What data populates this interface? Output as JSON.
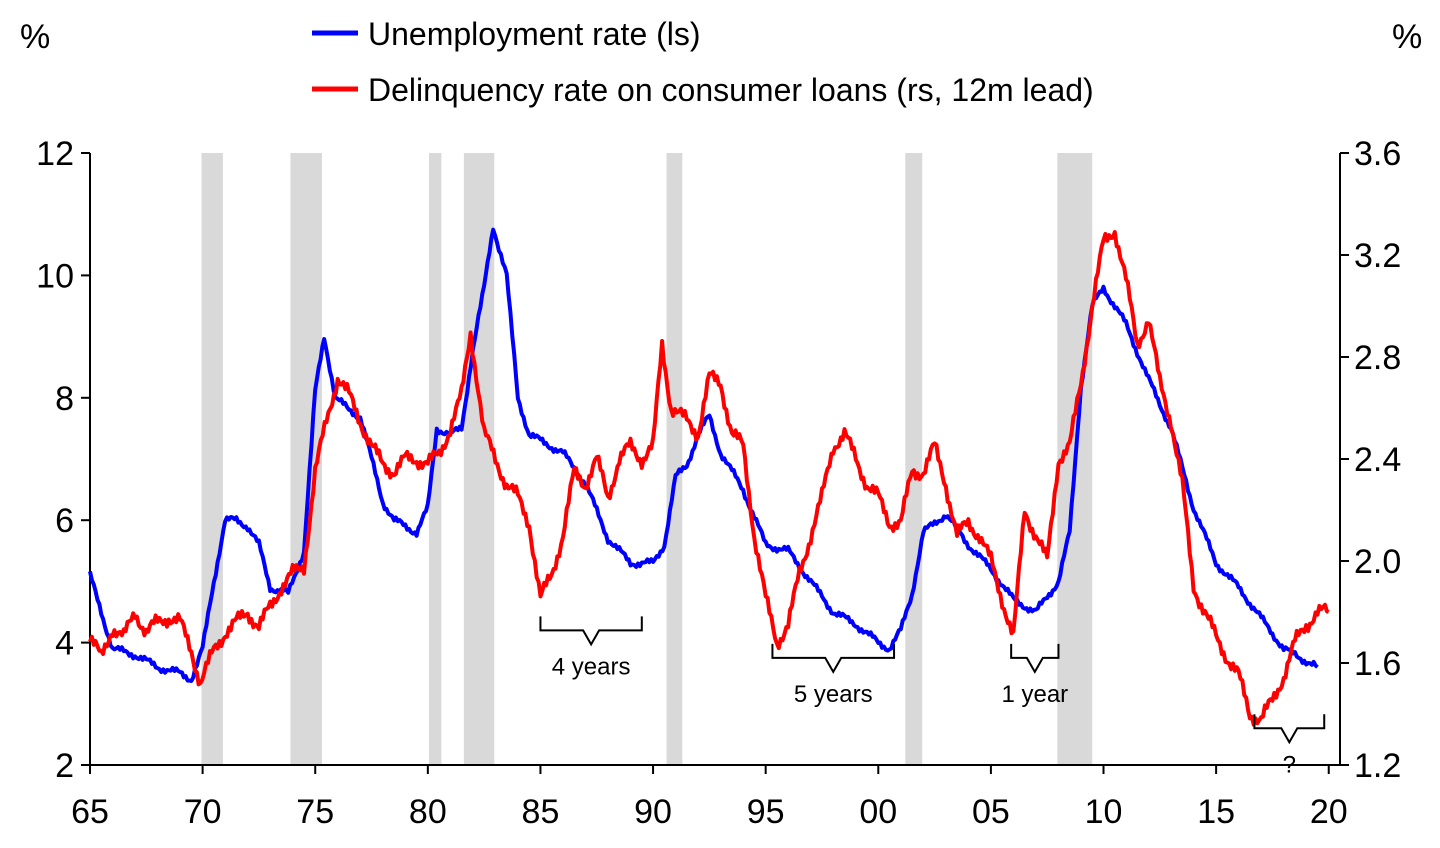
{
  "chart_data": {
    "type": "line",
    "left_axis": {
      "unit": "%",
      "ylim": [
        2,
        12
      ],
      "ticks": [
        "2",
        "4",
        "6",
        "8",
        "10",
        "12"
      ]
    },
    "right_axis": {
      "unit": "%",
      "ylim": [
        1.2,
        3.6
      ],
      "ticks": [
        "1.2",
        "1.6",
        "2.0",
        "2.4",
        "2.8",
        "3.2",
        "3.6"
      ]
    },
    "x_axis": {
      "xlim": [
        1965,
        2020.5
      ],
      "ticks": [
        {
          "year": 1965,
          "label": "65"
        },
        {
          "year": 1970,
          "label": "70"
        },
        {
          "year": 1975,
          "label": "75"
        },
        {
          "year": 1980,
          "label": "80"
        },
        {
          "year": 1985,
          "label": "85"
        },
        {
          "year": 1990,
          "label": "90"
        },
        {
          "year": 1995,
          "label": "95"
        },
        {
          "year": 2000,
          "label": "00"
        },
        {
          "year": 2005,
          "label": "05"
        },
        {
          "year": 2010,
          "label": "10"
        },
        {
          "year": 2015,
          "label": "15"
        },
        {
          "year": 2020,
          "label": "20"
        }
      ]
    },
    "legend": {
      "placement": "top",
      "entries": [
        {
          "label": "Unemployment rate (ls)",
          "color": "#0000ff"
        },
        {
          "label": "Delinquency rate on consumer loans (rs, 12m lead)",
          "color": "#ff0000"
        }
      ]
    },
    "recessions": [
      [
        1969.95,
        1970.9
      ],
      [
        1973.9,
        1975.3
      ],
      [
        1980.05,
        1980.6
      ],
      [
        1981.6,
        1982.95
      ],
      [
        1990.6,
        1991.3
      ],
      [
        2001.2,
        2001.95
      ],
      [
        2007.95,
        2009.5
      ]
    ],
    "series": [
      {
        "name": "Unemployment rate (ls)",
        "axis": "left",
        "color": "#0000ff",
        "points": [
          [
            1965.0,
            5.1
          ],
          [
            1966.0,
            3.9
          ],
          [
            1967.0,
            3.8
          ],
          [
            1968.0,
            3.6
          ],
          [
            1969.0,
            3.5
          ],
          [
            1969.5,
            3.4
          ],
          [
            1970.0,
            3.9
          ],
          [
            1970.5,
            5.0
          ],
          [
            1971.0,
            6.0
          ],
          [
            1971.5,
            6.0
          ],
          [
            1972.0,
            5.9
          ],
          [
            1972.5,
            5.6
          ],
          [
            1973.0,
            4.9
          ],
          [
            1973.8,
            4.8
          ],
          [
            1974.5,
            5.5
          ],
          [
            1975.0,
            8.1
          ],
          [
            1975.4,
            9.0
          ],
          [
            1975.9,
            8.0
          ],
          [
            1976.5,
            7.8
          ],
          [
            1977.0,
            7.7
          ],
          [
            1977.5,
            7.0
          ],
          [
            1978.0,
            6.3
          ],
          [
            1978.5,
            6.0
          ],
          [
            1979.0,
            5.9
          ],
          [
            1979.5,
            5.8
          ],
          [
            1980.0,
            6.2
          ],
          [
            1980.4,
            7.5
          ],
          [
            1981.0,
            7.4
          ],
          [
            1981.5,
            7.5
          ],
          [
            1982.0,
            8.8
          ],
          [
            1982.5,
            9.8
          ],
          [
            1982.9,
            10.8
          ],
          [
            1983.5,
            10.0
          ],
          [
            1984.0,
            8.0
          ],
          [
            1984.5,
            7.4
          ],
          [
            1985.0,
            7.3
          ],
          [
            1986.0,
            7.1
          ],
          [
            1987.0,
            6.6
          ],
          [
            1988.0,
            5.7
          ],
          [
            1989.0,
            5.3
          ],
          [
            1990.0,
            5.3
          ],
          [
            1990.5,
            5.6
          ],
          [
            1991.0,
            6.7
          ],
          [
            1991.5,
            6.9
          ],
          [
            1992.0,
            7.4
          ],
          [
            1992.5,
            7.7
          ],
          [
            1993.0,
            7.1
          ],
          [
            1994.0,
            6.5
          ],
          [
            1995.0,
            5.6
          ],
          [
            1996.0,
            5.5
          ],
          [
            1997.0,
            5.0
          ],
          [
            1998.0,
            4.5
          ],
          [
            1999.0,
            4.3
          ],
          [
            2000.0,
            4.0
          ],
          [
            2000.5,
            3.9
          ],
          [
            2001.0,
            4.2
          ],
          [
            2001.5,
            4.8
          ],
          [
            2002.0,
            5.8
          ],
          [
            2003.0,
            6.1
          ],
          [
            2004.0,
            5.6
          ],
          [
            2005.0,
            5.2
          ],
          [
            2006.0,
            4.7
          ],
          [
            2007.0,
            4.5
          ],
          [
            2008.0,
            5.0
          ],
          [
            2008.5,
            5.8
          ],
          [
            2009.0,
            8.2
          ],
          [
            2009.5,
            9.5
          ],
          [
            2010.0,
            9.8
          ],
          [
            2011.0,
            9.2
          ],
          [
            2012.0,
            8.3
          ],
          [
            2013.0,
            7.5
          ],
          [
            2014.0,
            6.2
          ],
          [
            2015.0,
            5.3
          ],
          [
            2016.0,
            4.9
          ],
          [
            2017.0,
            4.4
          ],
          [
            2018.0,
            3.9
          ],
          [
            2019.0,
            3.7
          ],
          [
            2019.5,
            3.6
          ]
        ]
      },
      {
        "name": "Delinquency rate on consumer loans (rs, 12m lead)",
        "axis": "right",
        "color": "#ff0000",
        "points": [
          [
            1965.0,
            1.7
          ],
          [
            1965.5,
            1.62
          ],
          [
            1966.0,
            1.74
          ],
          [
            1966.5,
            1.7
          ],
          [
            1967.0,
            1.8
          ],
          [
            1967.5,
            1.72
          ],
          [
            1968.0,
            1.76
          ],
          [
            1968.5,
            1.78
          ],
          [
            1969.0,
            1.76
          ],
          [
            1969.5,
            1.65
          ],
          [
            1969.9,
            1.52
          ],
          [
            1970.5,
            1.65
          ],
          [
            1971.0,
            1.72
          ],
          [
            1971.5,
            1.76
          ],
          [
            1972.0,
            1.8
          ],
          [
            1972.5,
            1.74
          ],
          [
            1973.0,
            1.82
          ],
          [
            1973.5,
            1.9
          ],
          [
            1974.0,
            1.95
          ],
          [
            1974.5,
            1.98
          ],
          [
            1975.0,
            2.35
          ],
          [
            1975.5,
            2.55
          ],
          [
            1976.0,
            2.72
          ],
          [
            1976.5,
            2.65
          ],
          [
            1977.0,
            2.55
          ],
          [
            1977.5,
            2.45
          ],
          [
            1978.0,
            2.38
          ],
          [
            1978.5,
            2.35
          ],
          [
            1979.0,
            2.4
          ],
          [
            1979.5,
            2.4
          ],
          [
            1980.0,
            2.38
          ],
          [
            1980.5,
            2.42
          ],
          [
            1981.0,
            2.52
          ],
          [
            1981.5,
            2.65
          ],
          [
            1981.9,
            2.9
          ],
          [
            1982.5,
            2.5
          ],
          [
            1983.0,
            2.4
          ],
          [
            1983.5,
            2.3
          ],
          [
            1984.0,
            2.25
          ],
          [
            1984.5,
            2.15
          ],
          [
            1985.0,
            1.85
          ],
          [
            1985.5,
            1.95
          ],
          [
            1986.0,
            2.1
          ],
          [
            1986.5,
            2.35
          ],
          [
            1987.0,
            2.3
          ],
          [
            1987.5,
            2.4
          ],
          [
            1988.0,
            2.25
          ],
          [
            1988.5,
            2.4
          ],
          [
            1989.0,
            2.45
          ],
          [
            1989.5,
            2.4
          ],
          [
            1990.0,
            2.45
          ],
          [
            1990.4,
            2.85
          ],
          [
            1990.8,
            2.6
          ],
          [
            1991.5,
            2.55
          ],
          [
            1992.0,
            2.5
          ],
          [
            1992.5,
            2.72
          ],
          [
            1993.0,
            2.7
          ],
          [
            1993.5,
            2.5
          ],
          [
            1994.0,
            2.45
          ],
          [
            1994.5,
            2.1
          ],
          [
            1995.0,
            1.85
          ],
          [
            1995.5,
            1.68
          ],
          [
            1996.0,
            1.75
          ],
          [
            1996.5,
            1.95
          ],
          [
            1997.0,
            2.1
          ],
          [
            1997.5,
            2.25
          ],
          [
            1998.0,
            2.45
          ],
          [
            1998.5,
            2.5
          ],
          [
            1999.0,
            2.4
          ],
          [
            1999.5,
            2.3
          ],
          [
            2000.0,
            2.25
          ],
          [
            2000.5,
            2.15
          ],
          [
            2001.0,
            2.15
          ],
          [
            2001.5,
            2.35
          ],
          [
            2002.0,
            2.35
          ],
          [
            2002.5,
            2.45
          ],
          [
            2003.0,
            2.3
          ],
          [
            2003.5,
            2.1
          ],
          [
            2004.0,
            2.15
          ],
          [
            2004.5,
            2.1
          ],
          [
            2005.0,
            2.0
          ],
          [
            2005.5,
            1.85
          ],
          [
            2006.0,
            1.7
          ],
          [
            2006.5,
            2.2
          ],
          [
            2007.0,
            2.1
          ],
          [
            2007.5,
            2.0
          ],
          [
            2008.0,
            2.4
          ],
          [
            2008.5,
            2.45
          ],
          [
            2009.0,
            2.7
          ],
          [
            2009.5,
            3.0
          ],
          [
            2010.0,
            3.25
          ],
          [
            2010.5,
            3.3
          ],
          [
            2011.0,
            3.1
          ],
          [
            2011.5,
            2.85
          ],
          [
            2012.0,
            2.95
          ],
          [
            2012.5,
            2.7
          ],
          [
            2013.0,
            2.55
          ],
          [
            2013.5,
            2.3
          ],
          [
            2014.0,
            1.9
          ],
          [
            2014.5,
            1.8
          ],
          [
            2015.0,
            1.7
          ],
          [
            2015.5,
            1.62
          ],
          [
            2016.0,
            1.55
          ],
          [
            2016.5,
            1.4
          ],
          [
            2017.0,
            1.38
          ],
          [
            2017.5,
            1.45
          ],
          [
            2018.0,
            1.55
          ],
          [
            2018.5,
            1.68
          ],
          [
            2019.0,
            1.75
          ],
          [
            2019.5,
            1.8
          ],
          [
            2020.0,
            1.8
          ]
        ]
      }
    ],
    "annotations": [
      {
        "label": "4 years",
        "from": 1985.0,
        "to": 1989.5,
        "y": 4.2
      },
      {
        "label": "5 years",
        "from": 1995.3,
        "to": 2000.7,
        "y": 3.75
      },
      {
        "label": "1 year",
        "from": 2005.9,
        "to": 2008.0,
        "y": 3.75
      },
      {
        "label": "?",
        "from": 2016.7,
        "to": 2019.8,
        "y": 2.6
      }
    ]
  }
}
